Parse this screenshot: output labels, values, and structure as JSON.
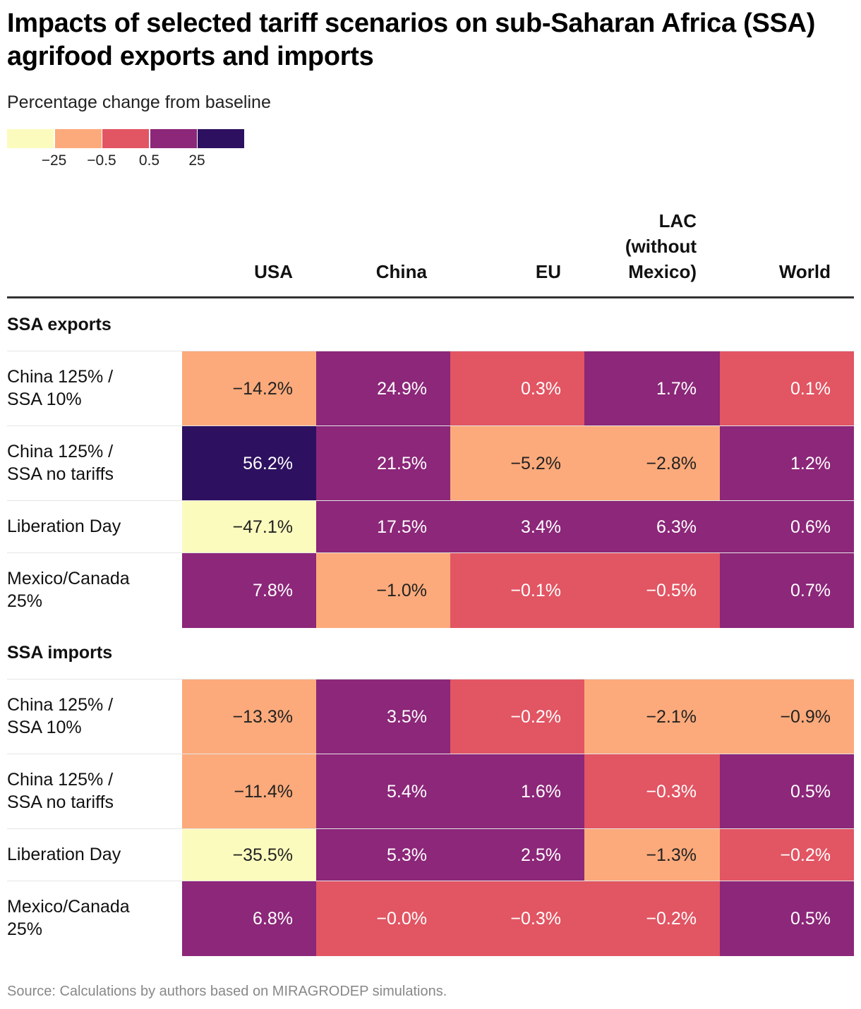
{
  "title": "Impacts of selected tariff scenarios on sub-Saharan Africa (SSA) agrifood exports and imports",
  "subtitle": "Percentage change from baseline",
  "source": "Source: Calculations by authors based on MIRAGRODEP simulations.",
  "legend": {
    "colors": [
      "#fbfbbe",
      "#fcaa7b",
      "#e25563",
      "#8c2779",
      "#2d1160"
    ],
    "thresholds": [
      -25,
      -0.5,
      0.5,
      25
    ],
    "labels": [
      "−25",
      "−0.5",
      "0.5",
      "25"
    ]
  },
  "chart_data": {
    "type": "heatmap",
    "title": "Impacts of selected tariff scenarios on sub-Saharan Africa (SSA) agrifood exports and imports",
    "subtitle": "Percentage change from baseline",
    "unit": "%",
    "columns": [
      "USA",
      "China",
      "EU",
      "LAC (without Mexico)",
      "World"
    ],
    "column_labels": [
      [
        "USA"
      ],
      [
        "China"
      ],
      [
        "EU"
      ],
      [
        "LAC",
        "(without",
        "Mexico)"
      ],
      [
        "World"
      ]
    ],
    "groups": [
      {
        "name": "SSA exports",
        "rows": [
          {
            "label": "China 125% / SSA 10%",
            "label_lines": [
              "China 125% /",
              "SSA 10%"
            ],
            "values": [
              -14.2,
              24.9,
              0.3,
              1.7,
              0.1
            ],
            "display": [
              "−14.2%",
              "24.9%",
              "0.3%",
              "1.7%",
              "0.1%"
            ]
          },
          {
            "label": "China 125% / SSA no tariffs",
            "label_lines": [
              "China 125% /",
              "SSA no tariffs"
            ],
            "values": [
              56.2,
              21.5,
              -5.2,
              -2.8,
              1.2
            ],
            "display": [
              "56.2%",
              "21.5%",
              "−5.2%",
              "−2.8%",
              "1.2%"
            ]
          },
          {
            "label": "Liberation Day",
            "label_lines": [
              "Liberation Day"
            ],
            "values": [
              -47.1,
              17.5,
              3.4,
              6.3,
              0.6
            ],
            "display": [
              "−47.1%",
              "17.5%",
              "3.4%",
              "6.3%",
              "0.6%"
            ]
          },
          {
            "label": "Mexico/Canada 25%",
            "label_lines": [
              "Mexico/Canada",
              "25%"
            ],
            "values": [
              7.8,
              -1.0,
              -0.1,
              -0.5,
              0.7
            ],
            "display": [
              "7.8%",
              "−1.0%",
              "−0.1%",
              "−0.5%",
              "0.7%"
            ]
          }
        ]
      },
      {
        "name": "SSA imports",
        "rows": [
          {
            "label": "China 125% / SSA 10%",
            "label_lines": [
              "China 125% /",
              "SSA 10%"
            ],
            "values": [
              -13.3,
              3.5,
              -0.2,
              -2.1,
              -0.9
            ],
            "display": [
              "−13.3%",
              "3.5%",
              "−0.2%",
              "−2.1%",
              "−0.9%"
            ]
          },
          {
            "label": "China 125% / SSA no tariffs",
            "label_lines": [
              "China 125% /",
              "SSA no tariffs"
            ],
            "values": [
              -11.4,
              5.4,
              1.6,
              -0.3,
              0.5
            ],
            "display": [
              "−11.4%",
              "5.4%",
              "1.6%",
              "−0.3%",
              "0.5%"
            ]
          },
          {
            "label": "Liberation Day",
            "label_lines": [
              "Liberation Day"
            ],
            "values": [
              -35.5,
              5.3,
              2.5,
              -1.3,
              -0.2
            ],
            "display": [
              "−35.5%",
              "5.3%",
              "2.5%",
              "−1.3%",
              "−0.2%"
            ]
          },
          {
            "label": "Mexico/Canada 25%",
            "label_lines": [
              "Mexico/Canada",
              "25%"
            ],
            "values": [
              6.8,
              -0.0,
              -0.3,
              -0.2,
              0.5
            ],
            "display": [
              "6.8%",
              "−0.0%",
              "−0.3%",
              "−0.2%",
              "0.5%"
            ]
          }
        ]
      }
    ]
  }
}
